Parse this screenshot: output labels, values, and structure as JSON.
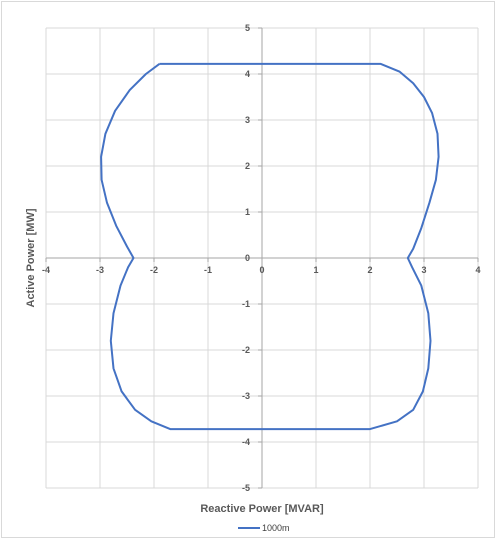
{
  "chart_data": {
    "type": "line",
    "title": "",
    "xlabel": "Reactive Power [MVAR]",
    "ylabel": "Active Power [MW]",
    "xlim": [
      -4,
      4
    ],
    "ylim": [
      -5,
      5
    ],
    "xticks": [
      -4,
      -3,
      -2,
      -1,
      0,
      1,
      2,
      3,
      4
    ],
    "yticks": [
      5,
      4,
      3,
      2,
      1,
      0,
      -1,
      -2,
      -3,
      -4,
      -5
    ],
    "grid": true,
    "legend": "bottom",
    "series": [
      {
        "name": "1000m",
        "color": "#4472c4",
        "points": [
          [
            -1.9,
            4.22
          ],
          [
            2.2,
            4.22
          ],
          [
            2.55,
            4.05
          ],
          [
            2.8,
            3.8
          ],
          [
            3.0,
            3.5
          ],
          [
            3.15,
            3.15
          ],
          [
            3.25,
            2.7
          ],
          [
            3.27,
            2.2
          ],
          [
            3.22,
            1.7
          ],
          [
            3.1,
            1.2
          ],
          [
            2.95,
            0.65
          ],
          [
            2.8,
            0.2
          ],
          [
            2.7,
            0.0
          ],
          [
            2.78,
            -0.2
          ],
          [
            2.95,
            -0.6
          ],
          [
            3.08,
            -1.2
          ],
          [
            3.12,
            -1.8
          ],
          [
            3.08,
            -2.4
          ],
          [
            2.98,
            -2.9
          ],
          [
            2.8,
            -3.3
          ],
          [
            2.5,
            -3.55
          ],
          [
            2.0,
            -3.72
          ],
          [
            -1.7,
            -3.72
          ],
          [
            -2.05,
            -3.55
          ],
          [
            -2.35,
            -3.3
          ],
          [
            -2.6,
            -2.9
          ],
          [
            -2.75,
            -2.4
          ],
          [
            -2.8,
            -1.8
          ],
          [
            -2.75,
            -1.2
          ],
          [
            -2.62,
            -0.6
          ],
          [
            -2.48,
            -0.2
          ],
          [
            -2.38,
            0.0
          ],
          [
            -2.5,
            0.25
          ],
          [
            -2.7,
            0.7
          ],
          [
            -2.87,
            1.2
          ],
          [
            -2.97,
            1.7
          ],
          [
            -2.98,
            2.2
          ],
          [
            -2.9,
            2.7
          ],
          [
            -2.72,
            3.2
          ],
          [
            -2.45,
            3.65
          ],
          [
            -2.15,
            4.0
          ],
          [
            -1.9,
            4.22
          ]
        ]
      }
    ]
  }
}
